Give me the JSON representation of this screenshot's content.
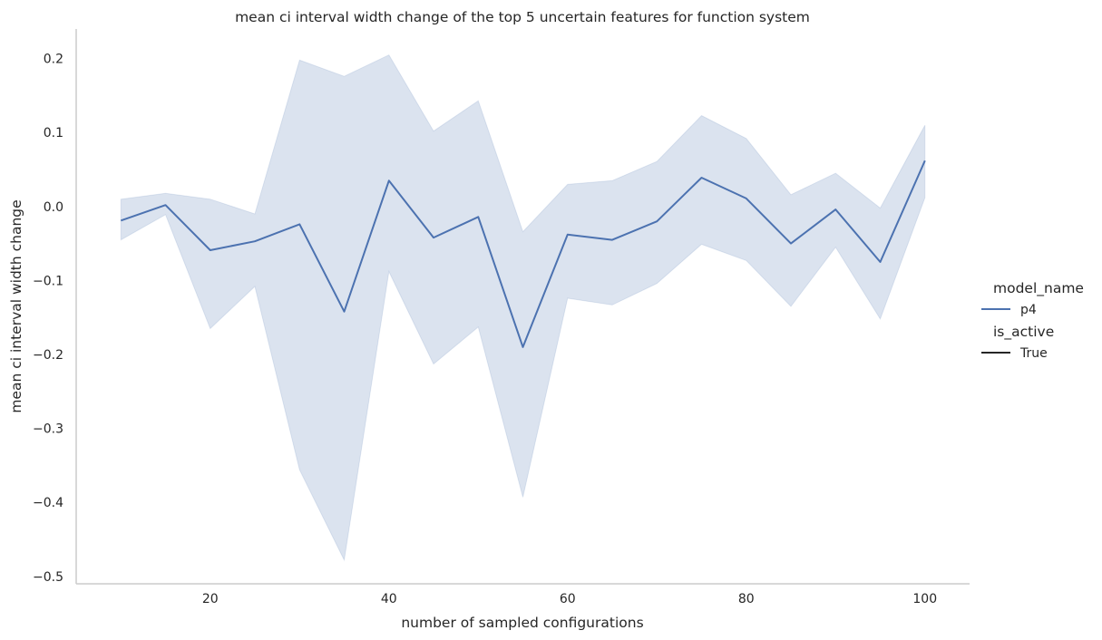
{
  "chart_data": {
    "type": "line",
    "title": "mean ci interval width change of the top 5 uncertain features for function system",
    "xlabel": "number of sampled configurations",
    "ylabel": "mean ci interval width change",
    "xlim": [
      5,
      105
    ],
    "ylim": [
      -0.51,
      0.24
    ],
    "xticks": [
      20,
      40,
      60,
      80,
      100
    ],
    "xtick_labels": [
      "20",
      "40",
      "60",
      "80",
      "100"
    ],
    "yticks": [
      0.2,
      0.1,
      0.0,
      -0.1,
      -0.2,
      -0.3,
      -0.4,
      -0.5
    ],
    "ytick_labels": [
      "0.2",
      "0.1",
      "0.0",
      "−0.1",
      "−0.2",
      "−0.3",
      "−0.4",
      "−0.5"
    ],
    "grid": false,
    "legend_position": "right",
    "colors": {
      "line": "#4c72b0",
      "band": "#4c72b0",
      "axis": "#cccccc",
      "text": "#262626"
    },
    "series": [
      {
        "name": "p4",
        "x": [
          10,
          15,
          20,
          25,
          30,
          35,
          40,
          45,
          50,
          55,
          60,
          65,
          70,
          75,
          80,
          85,
          90,
          95,
          100
        ],
        "y": [
          -0.019,
          0.002,
          -0.059,
          -0.047,
          -0.024,
          -0.142,
          0.035,
          -0.042,
          -0.014,
          -0.19,
          -0.038,
          -0.045,
          -0.02,
          0.039,
          0.011,
          -0.05,
          -0.004,
          -0.075,
          0.062
        ],
        "ci_upper": [
          0.01,
          0.018,
          0.01,
          -0.01,
          0.198,
          0.176,
          0.205,
          0.102,
          0.143,
          -0.034,
          0.03,
          0.035,
          0.061,
          0.123,
          0.092,
          0.016,
          0.045,
          -0.002,
          0.11
        ],
        "ci_lower": [
          -0.045,
          -0.011,
          -0.165,
          -0.108,
          -0.356,
          -0.478,
          -0.088,
          -0.213,
          -0.163,
          -0.393,
          -0.124,
          -0.133,
          -0.104,
          -0.051,
          -0.073,
          -0.135,
          -0.055,
          -0.152,
          0.012
        ]
      }
    ],
    "legend": {
      "title_hue": "model_name",
      "hue_label": "p4",
      "title_style": "is_active",
      "style_label": "True"
    }
  }
}
